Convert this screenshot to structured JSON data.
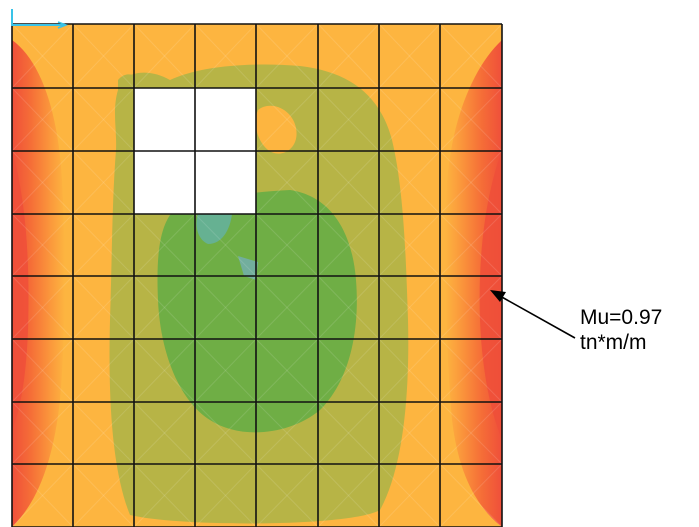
{
  "annotation": {
    "line1": "Mu=0.97",
    "line2": "tn*m/m"
  },
  "colors": {
    "edge_red": "#ef4f3a",
    "red_orange": "#f56d37",
    "orange": "#fb9a3c",
    "light_orange": "#fdb540",
    "olive": "#b7b446",
    "green": "#6fae45",
    "teal": "#66b192",
    "blue_tint": "#73aeb3",
    "grid": "#111111",
    "axis": "#39c3e8"
  },
  "icons": {
    "axis": "xy-axis-icon",
    "arrow": "arrow-icon"
  }
}
